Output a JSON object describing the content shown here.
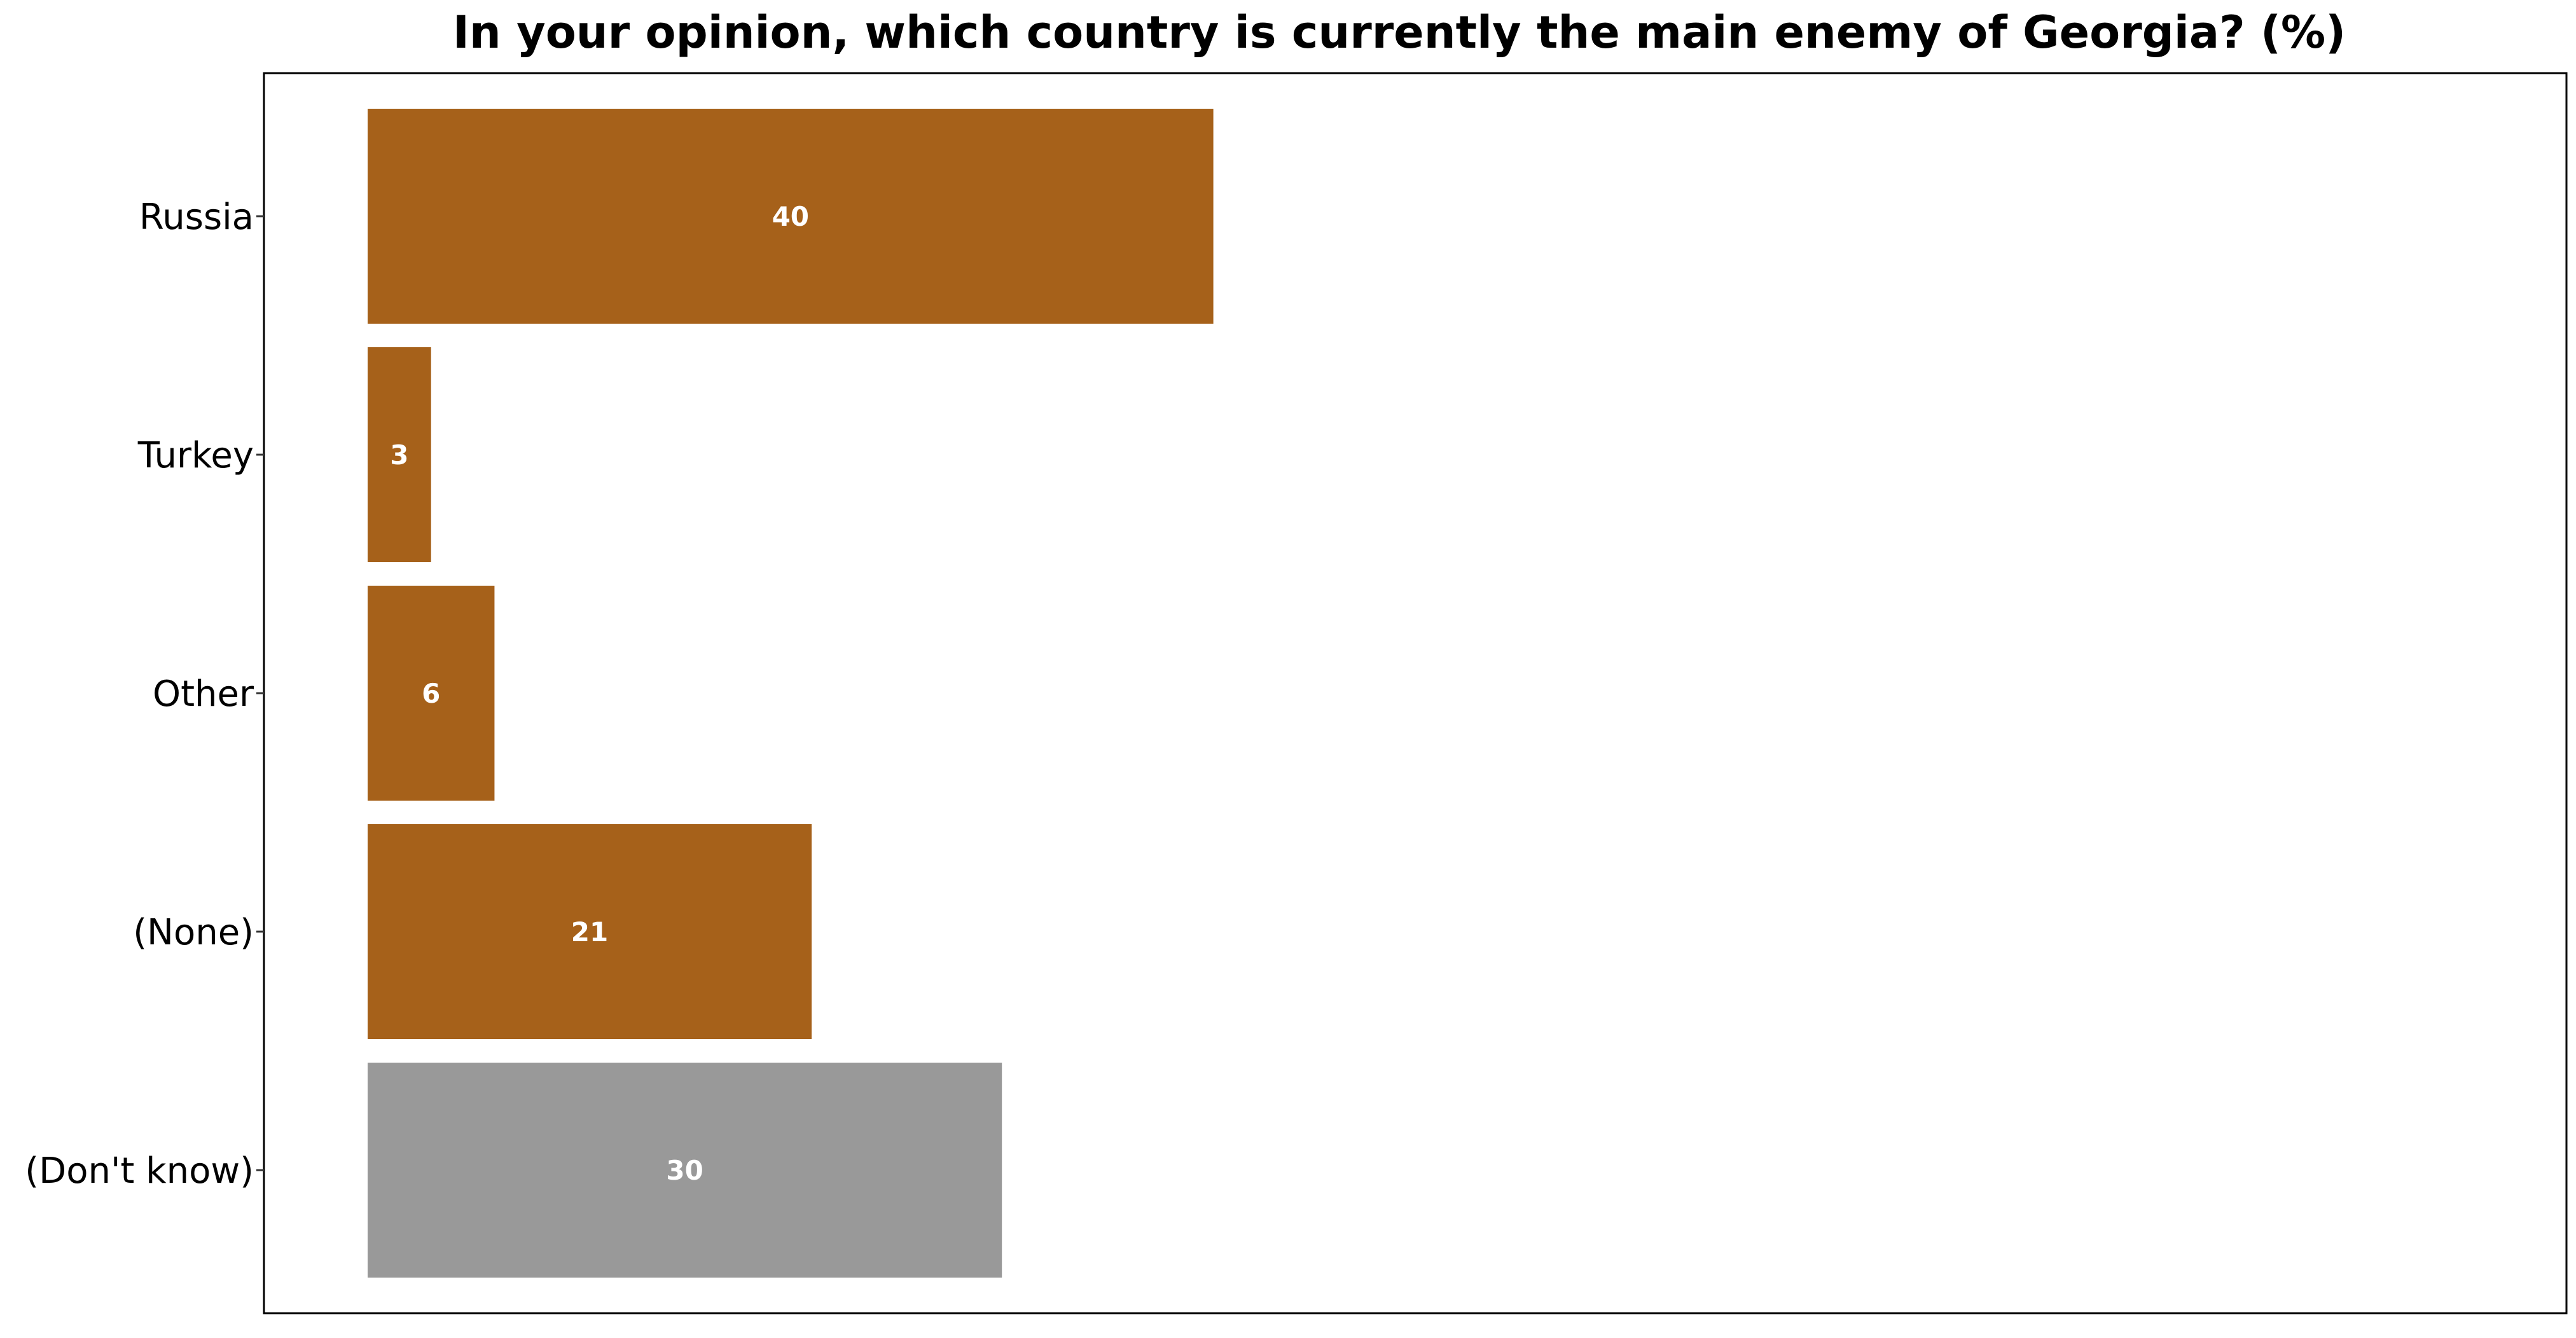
{
  "chart_data": {
    "type": "bar",
    "orientation": "horizontal",
    "title": "In your opinion, which country is currently the main enemy of Georgia? (%)",
    "xlabel": "",
    "ylabel": "",
    "categories": [
      "Russia",
      "Turkey",
      "Other",
      "(None)",
      "(Don't know)"
    ],
    "values": [
      40,
      3,
      6,
      21,
      30
    ],
    "xlim": [
      0,
      104
    ],
    "grid": false,
    "legend": "none",
    "colors": {
      "bar": "#A6611A",
      "dont_know_bar": "#999999",
      "bar_label": "#FFFFFF",
      "frame": "#000000"
    },
    "bar_colors": [
      "#A6611A",
      "#A6611A",
      "#A6611A",
      "#A6611A",
      "#999999"
    ]
  }
}
